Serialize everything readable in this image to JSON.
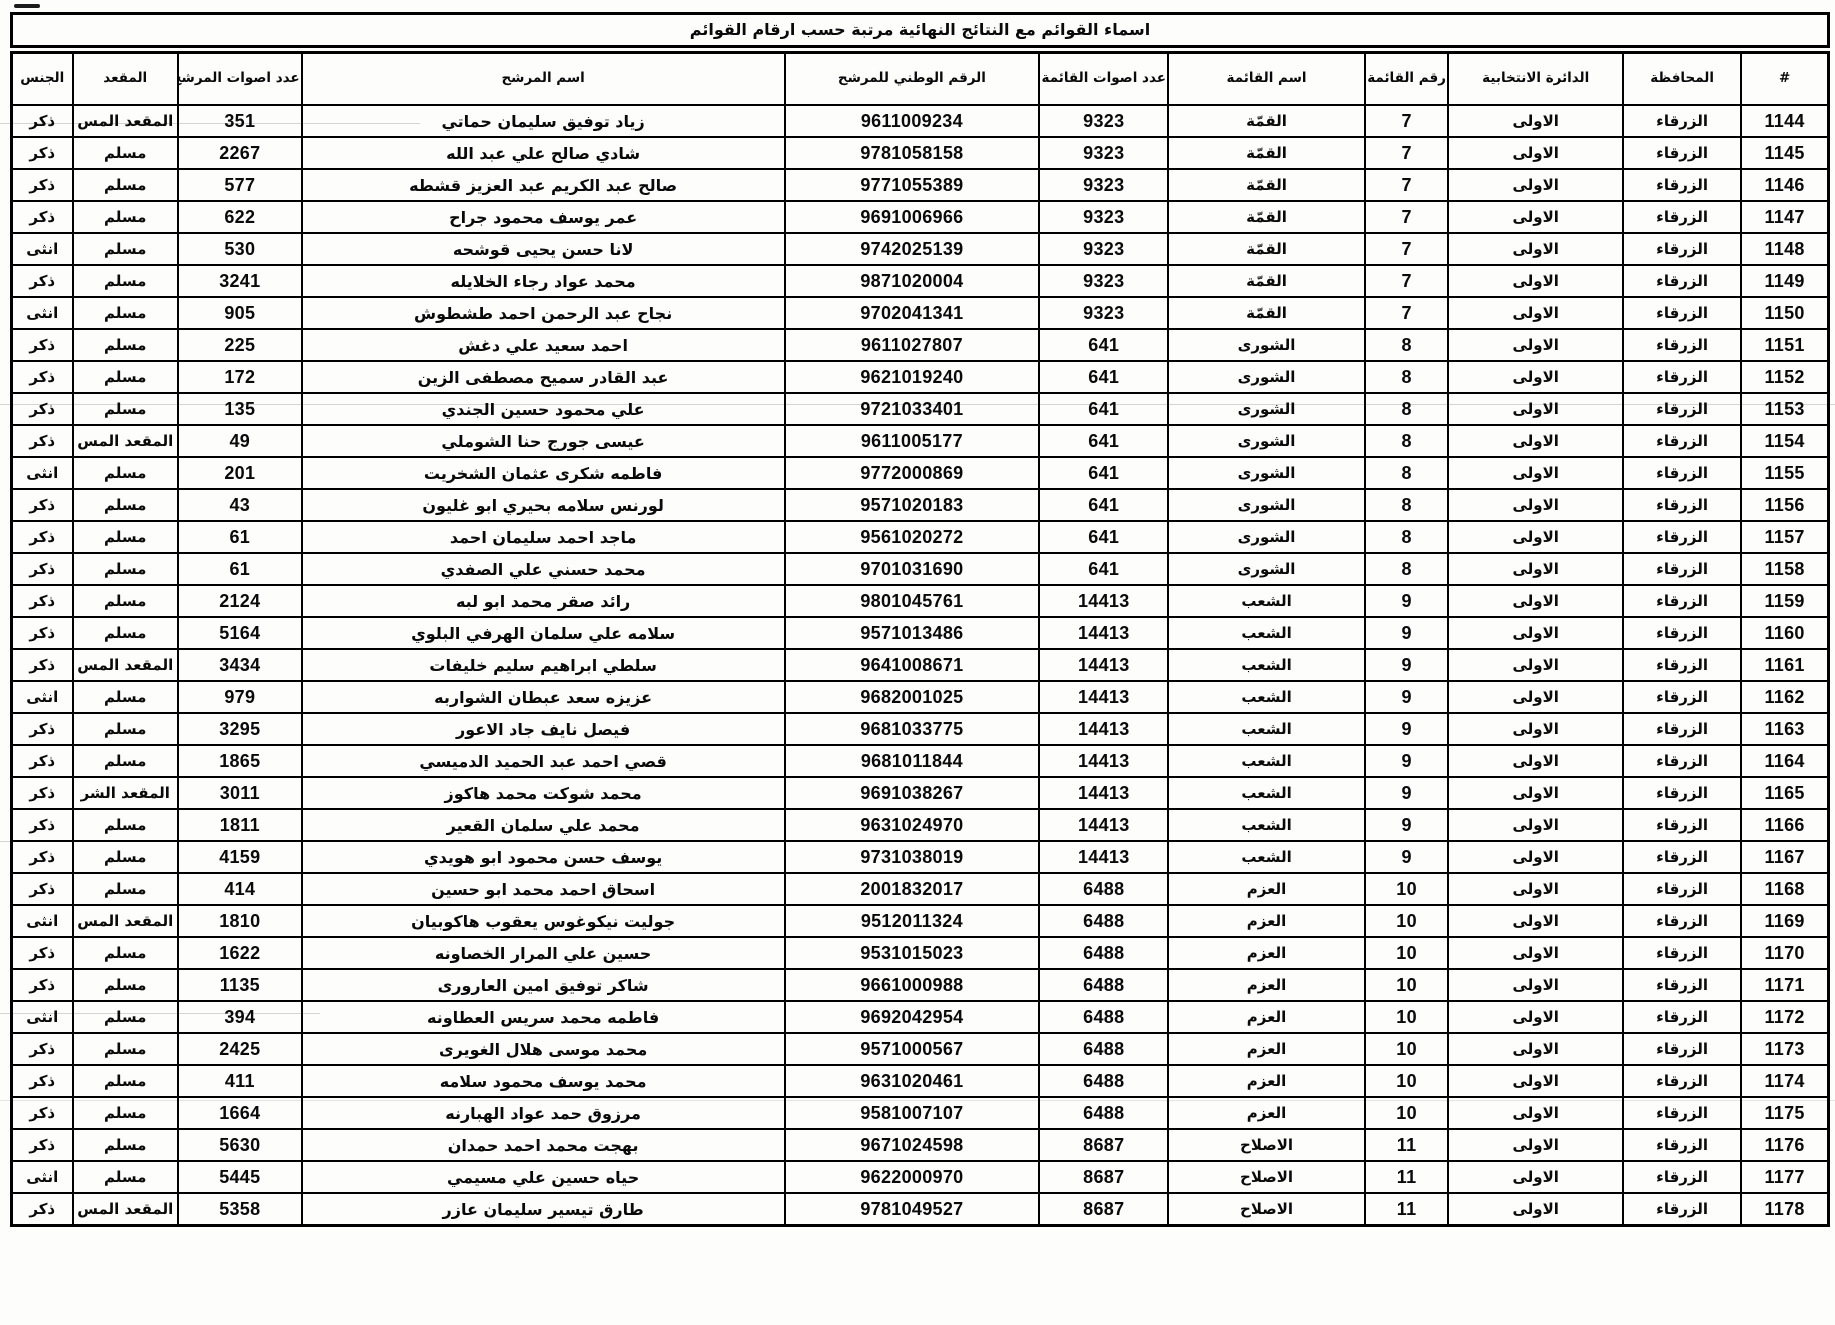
{
  "page": {
    "title": "اسماء القوائم مع النتائج النهائية مرتبة حسب ارقام القوائم"
  },
  "table": {
    "headers": [
      {
        "key": "num",
        "label": "#"
      },
      {
        "key": "governorate",
        "label": "المحافظة"
      },
      {
        "key": "district",
        "label": "الدائرة الانتخابية"
      },
      {
        "key": "list_no",
        "label": "رقم القائمة"
      },
      {
        "key": "list_name",
        "label": "اسم القائمة"
      },
      {
        "key": "list_votes",
        "label": "عدد اصوات\nالقائمة"
      },
      {
        "key": "national_id",
        "label": "الرقم الوطني للمرشح"
      },
      {
        "key": "candidate_name",
        "label": "اسم المرشح"
      },
      {
        "key": "candidate_votes",
        "label": "عدد اصوات\nالمرشح"
      },
      {
        "key": "seat",
        "label": "المقعد"
      },
      {
        "key": "gender",
        "label": "الجنس"
      }
    ],
    "rows": [
      [
        "1144",
        "الزرقاء",
        "الاولى",
        "7",
        "القمّة",
        "9323",
        "9611009234",
        "زياد توفيق سليمان حماتي",
        "351",
        "المقعد المس",
        "ذكر"
      ],
      [
        "1145",
        "الزرقاء",
        "الاولى",
        "7",
        "القمّة",
        "9323",
        "9781058158",
        "شادي صالح علي عبد الله",
        "2267",
        "مسلم",
        "ذكر"
      ],
      [
        "1146",
        "الزرقاء",
        "الاولى",
        "7",
        "القمّة",
        "9323",
        "9771055389",
        "صالح عبد الكريم عبد العزيز قشطه",
        "577",
        "مسلم",
        "ذكر"
      ],
      [
        "1147",
        "الزرقاء",
        "الاولى",
        "7",
        "القمّة",
        "9323",
        "9691006966",
        "عمر يوسف محمود جراح",
        "622",
        "مسلم",
        "ذكر"
      ],
      [
        "1148",
        "الزرقاء",
        "الاولى",
        "7",
        "القمّة",
        "9323",
        "9742025139",
        "لانا حسن يحيى قوشحه",
        "530",
        "مسلم",
        "انثى"
      ],
      [
        "1149",
        "الزرقاء",
        "الاولى",
        "7",
        "القمّة",
        "9323",
        "9871020004",
        "محمد عواد رجاء الخلايله",
        "3241",
        "مسلم",
        "ذكر"
      ],
      [
        "1150",
        "الزرقاء",
        "الاولى",
        "7",
        "القمّة",
        "9323",
        "9702041341",
        "نجاح عبد الرحمن احمد طشطوش",
        "905",
        "مسلم",
        "انثى"
      ],
      [
        "1151",
        "الزرقاء",
        "الاولى",
        "8",
        "الشورى",
        "641",
        "9611027807",
        "احمد سعيد علي دغش",
        "225",
        "مسلم",
        "ذكر"
      ],
      [
        "1152",
        "الزرقاء",
        "الاولى",
        "8",
        "الشورى",
        "641",
        "9621019240",
        "عبد القادر سميح مصطفى الزين",
        "172",
        "مسلم",
        "ذكر"
      ],
      [
        "1153",
        "الزرقاء",
        "الاولى",
        "8",
        "الشورى",
        "641",
        "9721033401",
        "علي محمود حسين الجندي",
        "135",
        "مسلم",
        "ذكر"
      ],
      [
        "1154",
        "الزرقاء",
        "الاولى",
        "8",
        "الشورى",
        "641",
        "9611005177",
        "عيسى جورج حنا الشوملي",
        "49",
        "المقعد المس",
        "ذكر"
      ],
      [
        "1155",
        "الزرقاء",
        "الاولى",
        "8",
        "الشورى",
        "641",
        "9772000869",
        "فاطمه شكرى عثمان الشخريت",
        "201",
        "مسلم",
        "انثى"
      ],
      [
        "1156",
        "الزرقاء",
        "الاولى",
        "8",
        "الشورى",
        "641",
        "9571020183",
        "لورنس سلامه بحيري ابو غليون",
        "43",
        "مسلم",
        "ذكر"
      ],
      [
        "1157",
        "الزرقاء",
        "الاولى",
        "8",
        "الشورى",
        "641",
        "9561020272",
        "ماجد احمد سليمان احمد",
        "61",
        "مسلم",
        "ذكر"
      ],
      [
        "1158",
        "الزرقاء",
        "الاولى",
        "8",
        "الشورى",
        "641",
        "9701031690",
        "محمد حسني علي الصفدي",
        "61",
        "مسلم",
        "ذكر"
      ],
      [
        "1159",
        "الزرقاء",
        "الاولى",
        "9",
        "الشعب",
        "14413",
        "9801045761",
        "رائد صقر محمد ابو لبه",
        "2124",
        "مسلم",
        "ذكر"
      ],
      [
        "1160",
        "الزرقاء",
        "الاولى",
        "9",
        "الشعب",
        "14413",
        "9571013486",
        "سلامه علي سلمان الهرفي البلوي",
        "5164",
        "مسلم",
        "ذكر"
      ],
      [
        "1161",
        "الزرقاء",
        "الاولى",
        "9",
        "الشعب",
        "14413",
        "9641008671",
        "سلطي ابراهيم سليم خليفات",
        "3434",
        "المقعد المس",
        "ذكر"
      ],
      [
        "1162",
        "الزرقاء",
        "الاولى",
        "9",
        "الشعب",
        "14413",
        "9682001025",
        "عزيزه سعد عبطان الشواربه",
        "979",
        "مسلم",
        "انثى"
      ],
      [
        "1163",
        "الزرقاء",
        "الاولى",
        "9",
        "الشعب",
        "14413",
        "9681033775",
        "فيصل نايف جاد الاعور",
        "3295",
        "مسلم",
        "ذكر"
      ],
      [
        "1164",
        "الزرقاء",
        "الاولى",
        "9",
        "الشعب",
        "14413",
        "9681011844",
        "قصي احمد عبد الحميد الدميسي",
        "1865",
        "مسلم",
        "ذكر"
      ],
      [
        "1165",
        "الزرقاء",
        "الاولى",
        "9",
        "الشعب",
        "14413",
        "9691038267",
        "محمد شوكت محمد هاكوز",
        "3011",
        "المقعد الشر",
        "ذكر"
      ],
      [
        "1166",
        "الزرقاء",
        "الاولى",
        "9",
        "الشعب",
        "14413",
        "9631024970",
        "محمد علي سلمان القعير",
        "1811",
        "مسلم",
        "ذكر"
      ],
      [
        "1167",
        "الزرقاء",
        "الاولى",
        "9",
        "الشعب",
        "14413",
        "9731038019",
        "يوسف حسن محمود ابو هويدي",
        "4159",
        "مسلم",
        "ذكر"
      ],
      [
        "1168",
        "الزرقاء",
        "الاولى",
        "10",
        "العزم",
        "6488",
        "2001832017",
        "اسحاق احمد محمد ابو حسين",
        "414",
        "مسلم",
        "ذكر"
      ],
      [
        "1169",
        "الزرقاء",
        "الاولى",
        "10",
        "العزم",
        "6488",
        "9512011324",
        "جوليت نيكوغوس يعقوب هاكوبيان",
        "1810",
        "المقعد المس",
        "انثى"
      ],
      [
        "1170",
        "الزرقاء",
        "الاولى",
        "10",
        "العزم",
        "6488",
        "9531015023",
        "حسين علي المرار الخصاونه",
        "1622",
        "مسلم",
        "ذكر"
      ],
      [
        "1171",
        "الزرقاء",
        "الاولى",
        "10",
        "العزم",
        "6488",
        "9661000988",
        "شاكر توفيق امين العارورى",
        "1135",
        "مسلم",
        "ذكر"
      ],
      [
        "1172",
        "الزرقاء",
        "الاولى",
        "10",
        "العزم",
        "6488",
        "9692042954",
        "فاطمه محمد سريس العطاونه",
        "394",
        "مسلم",
        "انثى"
      ],
      [
        "1173",
        "الزرقاء",
        "الاولى",
        "10",
        "العزم",
        "6488",
        "9571000567",
        "محمد موسى هلال الغويرى",
        "2425",
        "مسلم",
        "ذكر"
      ],
      [
        "1174",
        "الزرقاء",
        "الاولى",
        "10",
        "العزم",
        "6488",
        "9631020461",
        "محمد يوسف محمود سلامه",
        "411",
        "مسلم",
        "ذكر"
      ],
      [
        "1175",
        "الزرقاء",
        "الاولى",
        "10",
        "العزم",
        "6488",
        "9581007107",
        "مرزوق حمد عواد الهبارنه",
        "1664",
        "مسلم",
        "ذكر"
      ],
      [
        "1176",
        "الزرقاء",
        "الاولى",
        "11",
        "الاصلاح",
        "8687",
        "9671024598",
        "بهجت محمد احمد حمدان",
        "5630",
        "مسلم",
        "ذكر"
      ],
      [
        "1177",
        "الزرقاء",
        "الاولى",
        "11",
        "الاصلاح",
        "8687",
        "9622000970",
        "حياه حسين علي مسيمي",
        "5445",
        "مسلم",
        "انثى"
      ],
      [
        "1178",
        "الزرقاء",
        "الاولى",
        "11",
        "الاصلاح",
        "8687",
        "9781049527",
        "طارق تيسير سليمان عازر",
        "5358",
        "المقعد المس",
        "ذكر"
      ]
    ]
  }
}
